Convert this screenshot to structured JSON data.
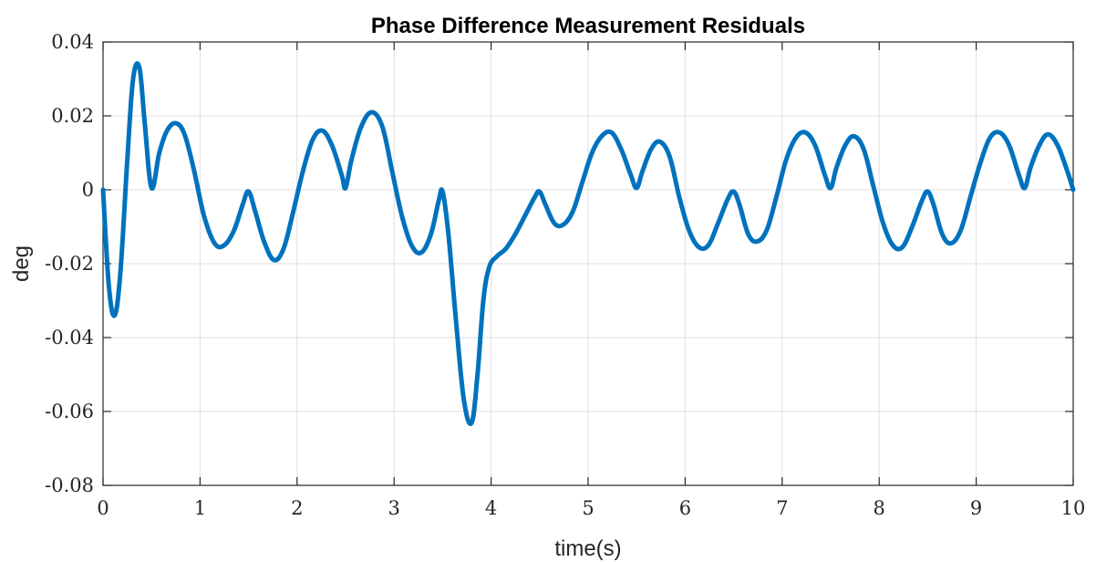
{
  "chart_data": {
    "type": "line",
    "title": "Phase Difference Measurement Residuals",
    "xlabel": "time(s)",
    "ylabel": "deg",
    "xlim": [
      0,
      10
    ],
    "ylim": [
      -0.08,
      0.04
    ],
    "xticks": [
      0,
      1,
      2,
      3,
      4,
      5,
      6,
      7,
      8,
      9,
      10
    ],
    "xtick_labels": [
      "0",
      "1",
      "2",
      "3",
      "4",
      "5",
      "6",
      "7",
      "8",
      "9",
      "10"
    ],
    "yticks": [
      0.04,
      0.02,
      0,
      -0.02,
      -0.04,
      -0.06,
      -0.08
    ],
    "ytick_labels": [
      "0.04",
      "0.02",
      "0",
      "-0.02",
      "-0.04",
      "-0.06",
      "-0.08"
    ],
    "grid": true,
    "series": [
      {
        "color": "#0072bd",
        "x": [
          0,
          0.06,
          0.12,
          0.18,
          0.25,
          0.31,
          0.375,
          0.43,
          0.5,
          0.58,
          0.66,
          0.75,
          0.84,
          0.94,
          1.04,
          1.15,
          1.25,
          1.35,
          1.44,
          1.5,
          1.57,
          1.66,
          1.76,
          1.86,
          1.96,
          2.06,
          2.16,
          2.26,
          2.36,
          2.46,
          2.5,
          2.56,
          2.66,
          2.77,
          2.88,
          2.98,
          3.08,
          3.18,
          3.28,
          3.38,
          3.46,
          3.5,
          3.56,
          3.64,
          3.72,
          3.8,
          3.86,
          3.92,
          3.98,
          4.06,
          4.15,
          4.25,
          4.35,
          4.45,
          4.5,
          4.56,
          4.65,
          4.74,
          4.84,
          4.94,
          5.04,
          5.14,
          5.24,
          5.34,
          5.44,
          5.5,
          5.56,
          5.65,
          5.74,
          5.84,
          5.94,
          6.04,
          6.14,
          6.24,
          6.34,
          6.44,
          6.5,
          6.56,
          6.65,
          6.74,
          6.84,
          6.94,
          7.04,
          7.14,
          7.24,
          7.34,
          7.44,
          7.5,
          7.56,
          7.65,
          7.74,
          7.84,
          7.94,
          8.04,
          8.14,
          8.24,
          8.34,
          8.44,
          8.5,
          8.56,
          8.65,
          8.74,
          8.84,
          8.94,
          9.04,
          9.14,
          9.24,
          9.34,
          9.44,
          9.5,
          9.56,
          9.65,
          9.74,
          9.84,
          9.94,
          10.0
        ],
        "y": [
          0,
          -0.026,
          -0.034,
          -0.022,
          0.008,
          0.03,
          0.033,
          0.018,
          0.0005,
          0.01,
          0.016,
          0.018,
          0.015,
          0.005,
          -0.007,
          -0.0145,
          -0.015,
          -0.011,
          -0.004,
          -0.0005,
          -0.006,
          -0.014,
          -0.019,
          -0.016,
          -0.006,
          0.005,
          0.0135,
          0.016,
          0.012,
          0.004,
          0.0005,
          0.008,
          0.017,
          0.021,
          0.017,
          0.005,
          -0.007,
          -0.015,
          -0.017,
          -0.012,
          -0.003,
          -0.0005,
          -0.012,
          -0.036,
          -0.057,
          -0.063,
          -0.05,
          -0.03,
          -0.021,
          -0.018,
          -0.016,
          -0.012,
          -0.007,
          -0.002,
          -0.0005,
          -0.004,
          -0.009,
          -0.0095,
          -0.006,
          0.002,
          0.01,
          0.0145,
          0.0155,
          0.011,
          0.004,
          0.0005,
          0.005,
          0.011,
          0.013,
          0.009,
          -0.002,
          -0.011,
          -0.0155,
          -0.015,
          -0.009,
          -0.0025,
          -0.0005,
          -0.004,
          -0.012,
          -0.014,
          -0.011,
          -0.002,
          0.008,
          0.014,
          0.0155,
          0.012,
          0.004,
          0.0005,
          0.006,
          0.012,
          0.0145,
          0.011,
          0.001,
          -0.009,
          -0.015,
          -0.0155,
          -0.01,
          -0.003,
          -0.0005,
          -0.004,
          -0.012,
          -0.0145,
          -0.011,
          -0.002,
          0.007,
          0.014,
          0.0155,
          0.012,
          0.004,
          0.0005,
          0.006,
          0.012,
          0.015,
          0.012,
          0.005,
          0.0
        ]
      }
    ]
  }
}
